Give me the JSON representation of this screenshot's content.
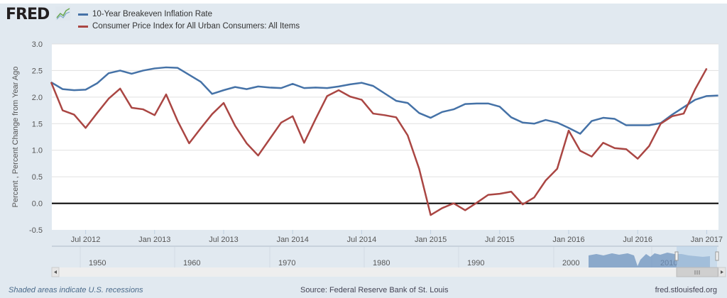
{
  "header": {
    "logo": "FRED",
    "logo_icon": "line-chart-icon"
  },
  "footer": {
    "recession_note": "Shaded areas indicate U.S. recessions",
    "source": "Source: Federal Reserve Bank of St. Louis",
    "site": "fred.stlouisfed.org"
  },
  "navigator": {
    "decades": [
      "1950",
      "1960",
      "1970",
      "1980",
      "1990",
      "2000",
      "2010"
    ]
  },
  "chart_data": {
    "type": "line",
    "title": "",
    "xlabel": "",
    "ylabel": "Percent , Percent Change from Year Ago",
    "ylim": [
      -0.5,
      3.0
    ],
    "yticks": [
      "3.0",
      "2.5",
      "2.0",
      "1.5",
      "1.0",
      "0.5",
      "0.0",
      "-0.5"
    ],
    "xticks": [
      "Jul 2012",
      "Jan 2013",
      "Jul 2013",
      "Jan 2014",
      "Jul 2014",
      "Jan 2015",
      "Jul 2015",
      "Jan 2016",
      "Jul 2016",
      "Jan 2017"
    ],
    "xtick_dates": [
      "2012-07",
      "2013-01",
      "2013-07",
      "2014-01",
      "2014-07",
      "2015-01",
      "2015-07",
      "2016-01",
      "2016-07",
      "2017-01"
    ],
    "x_start": "2012-04",
    "grid": true,
    "zero_line": true,
    "legend_position": "top-left",
    "series": [
      {
        "name": "10-Year Breakeven Inflation Rate",
        "color": "#4572a7",
        "values": [
          2.28,
          2.15,
          2.13,
          2.14,
          2.26,
          2.45,
          2.5,
          2.44,
          2.5,
          2.54,
          2.56,
          2.55,
          2.42,
          2.29,
          2.06,
          2.13,
          2.19,
          2.15,
          2.2,
          2.18,
          2.17,
          2.25,
          2.17,
          2.18,
          2.17,
          2.2,
          2.24,
          2.27,
          2.21,
          2.07,
          1.93,
          1.89,
          1.7,
          1.61,
          1.72,
          1.77,
          1.87,
          1.88,
          1.88,
          1.82,
          1.62,
          1.52,
          1.5,
          1.57,
          1.52,
          1.42,
          1.31,
          1.55,
          1.61,
          1.59,
          1.47,
          1.47,
          1.47,
          1.51,
          1.67,
          1.81,
          1.95,
          2.02,
          2.03
        ]
      },
      {
        "name": "Consumer Price Index for All Urban Consumers: All Items",
        "color": "#aa4643",
        "values": [
          2.28,
          1.75,
          1.67,
          1.42,
          1.7,
          1.97,
          2.16,
          1.8,
          1.77,
          1.66,
          2.05,
          1.55,
          1.13,
          1.41,
          1.68,
          1.89,
          1.46,
          1.13,
          0.9,
          1.21,
          1.52,
          1.64,
          1.14,
          1.59,
          2.02,
          2.13,
          2.01,
          1.95,
          1.69,
          1.66,
          1.62,
          1.28,
          0.65,
          -0.22,
          -0.09,
          0.0,
          -0.13,
          0.01,
          0.16,
          0.18,
          0.22,
          -0.02,
          0.11,
          0.43,
          0.65,
          1.37,
          0.99,
          0.88,
          1.14,
          1.04,
          1.02,
          0.84,
          1.08,
          1.5,
          1.64,
          1.69,
          2.15,
          2.54
        ]
      }
    ]
  }
}
